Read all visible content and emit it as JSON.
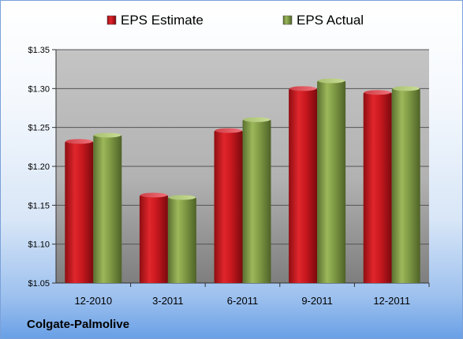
{
  "company": "Colgate-Palmolive",
  "chart_data": {
    "type": "bar",
    "categories": [
      "12-2010",
      "3-2011",
      "6-2011",
      "9-2011",
      "12-2011"
    ],
    "series": [
      {
        "name": "EPS Estimate",
        "color": "#c8181e",
        "values": [
          1.232,
          1.163,
          1.246,
          1.3,
          1.295
        ]
      },
      {
        "name": "EPS Actual",
        "color": "#7f9a44",
        "values": [
          1.24,
          1.16,
          1.26,
          1.31,
          1.3
        ]
      }
    ],
    "ylim": [
      1.05,
      1.35
    ],
    "yticks": [
      "$1.05",
      "$1.10",
      "$1.15",
      "$1.20",
      "$1.25",
      "$1.30",
      "$1.35"
    ],
    "ytick_values": [
      1.05,
      1.1,
      1.15,
      1.2,
      1.25,
      1.3,
      1.35
    ],
    "grid": true,
    "legend_position": "top"
  }
}
